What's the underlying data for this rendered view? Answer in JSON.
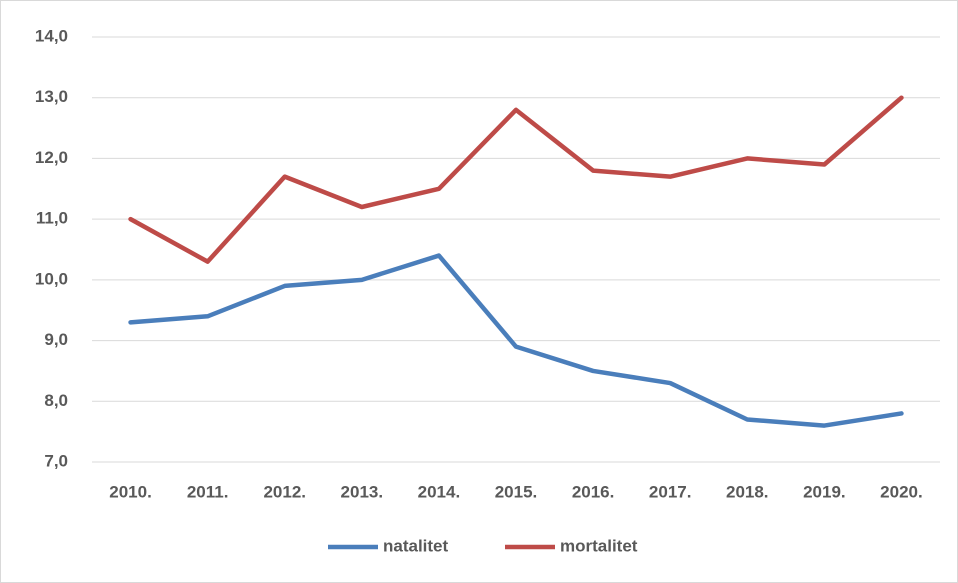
{
  "chart_data": {
    "type": "line",
    "categories": [
      "2010.",
      "2011.",
      "2012.",
      "2013.",
      "2014.",
      "2015.",
      "2016.",
      "2017.",
      "2018.",
      "2019.",
      "2020."
    ],
    "series": [
      {
        "name": "natalitet",
        "color": "#4a7ebb",
        "values": [
          9.3,
          9.4,
          9.9,
          10.0,
          10.4,
          8.9,
          8.5,
          8.3,
          7.7,
          7.6,
          7.8
        ]
      },
      {
        "name": "mortalitet",
        "color": "#be4b48",
        "values": [
          11.0,
          10.3,
          11.7,
          11.2,
          11.5,
          12.8,
          11.8,
          11.7,
          12.0,
          11.9,
          13.0
        ]
      }
    ],
    "ylim": [
      7,
      14
    ],
    "yticks": [
      {
        "value": 7,
        "label": "7,0"
      },
      {
        "value": 8,
        "label": "8,0"
      },
      {
        "value": 9,
        "label": "9,0"
      },
      {
        "value": 10,
        "label": "10,0"
      },
      {
        "value": 11,
        "label": "11,0"
      },
      {
        "value": 12,
        "label": "12,0"
      },
      {
        "value": 13,
        "label": "13,0"
      },
      {
        "value": 14,
        "label": "14,0"
      }
    ],
    "grid": true,
    "legend": "bottom"
  }
}
